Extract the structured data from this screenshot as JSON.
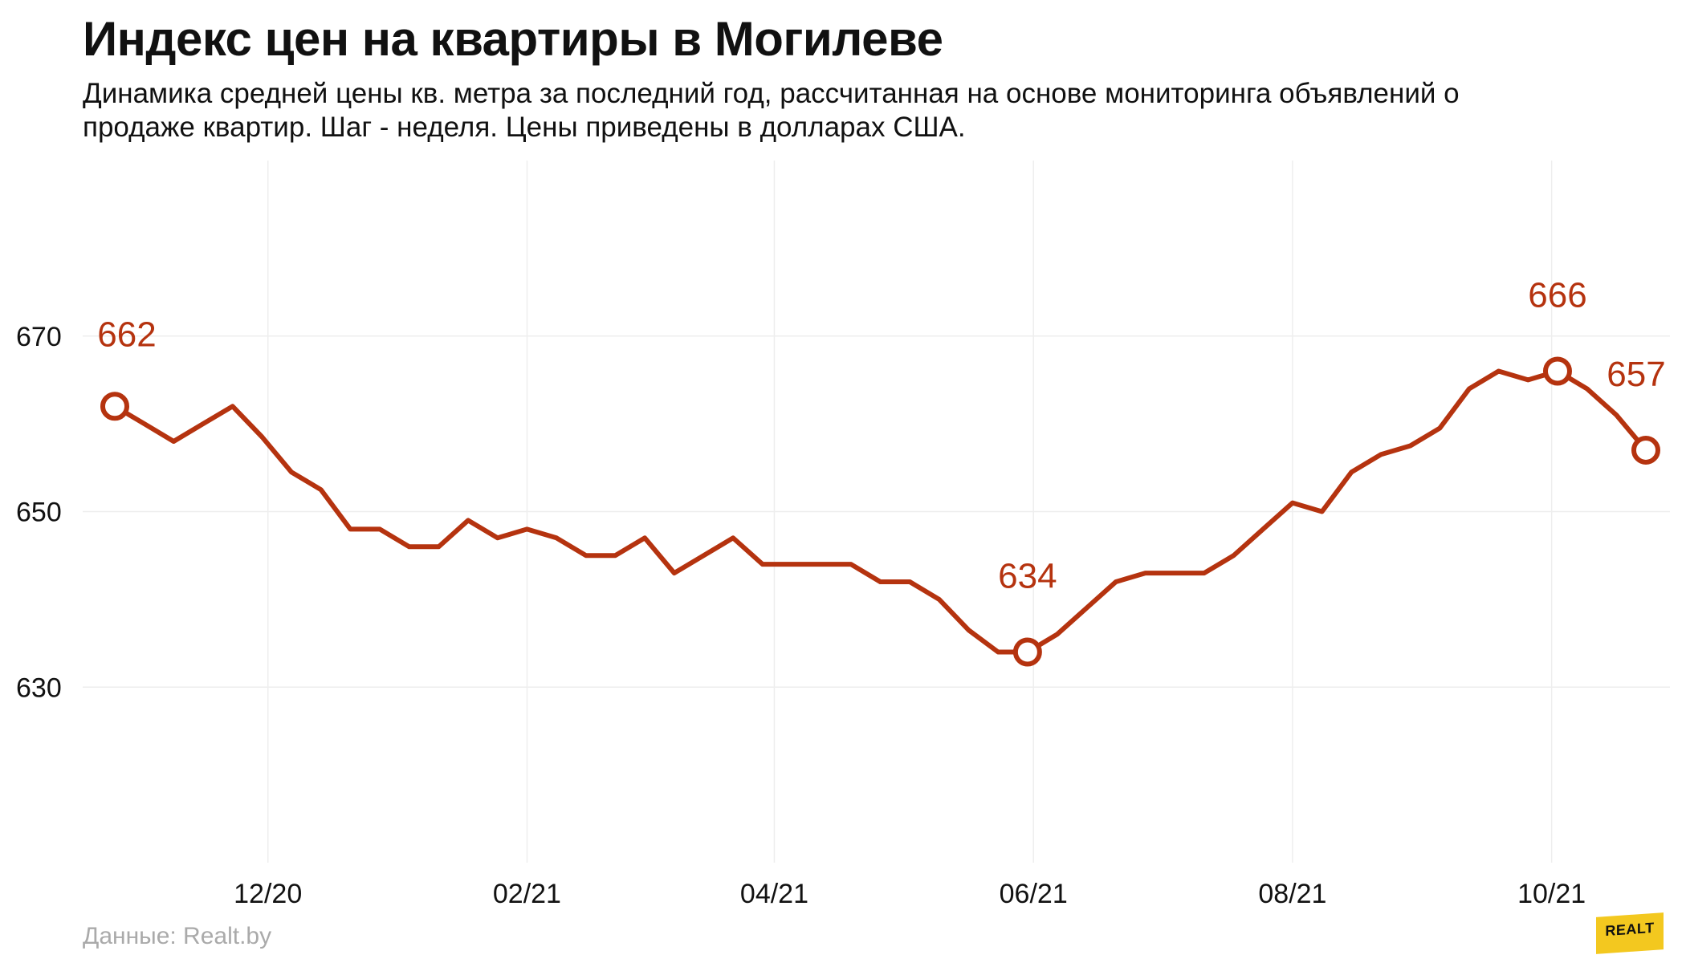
{
  "header": {
    "title": "Индекс цен на квартиры в Могилеве",
    "subtitle": "Динамика средней цены кв. метра за последний год, рассчитанная на основе мониторинга объявлений о продаже квартир. Шаг - неделя. Цены приведены в долларах США."
  },
  "footer": {
    "source": "Данные: Realt.by",
    "logo_text": "REALT"
  },
  "colors": {
    "line": "#b5330f",
    "grid": "#eeeeee",
    "axis_text": "#111111",
    "muted": "#aaaaaa",
    "logo": "#f3c81f"
  },
  "chart_data": {
    "type": "line",
    "title": "Индекс цен на квартиры в Могилеве",
    "xlabel": "",
    "ylabel": "",
    "ylim": [
      610,
      690
    ],
    "y_ticks": [
      630,
      650,
      670
    ],
    "grid": true,
    "x_tick_labels": [
      "12/20",
      "02/21",
      "04/21",
      "06/21",
      "08/21",
      "10/21"
    ],
    "x_tick_indices": [
      5.2,
      14,
      22.4,
      31.2,
      40,
      48.8
    ],
    "series": [
      {
        "values": [
          662,
          660,
          658,
          660,
          662,
          658.5,
          654.5,
          652.5,
          648,
          648,
          646,
          646,
          649,
          647,
          648,
          647,
          645,
          645,
          647,
          643,
          645,
          647,
          644,
          644,
          644,
          644,
          642,
          642,
          640,
          636.5,
          634,
          634,
          636,
          639,
          642,
          643,
          643,
          643,
          645,
          648,
          651,
          650,
          654.5,
          656.5,
          657.5,
          659.5,
          664,
          666,
          665,
          666,
          664,
          661,
          657
        ]
      }
    ],
    "annotations": [
      {
        "index": 0,
        "value": 662,
        "label": "662"
      },
      {
        "index": 31,
        "value": 634,
        "label": "634"
      },
      {
        "index": 49,
        "value": 666,
        "label": "666"
      },
      {
        "index": 52,
        "value": 657,
        "label": "657"
      }
    ]
  }
}
